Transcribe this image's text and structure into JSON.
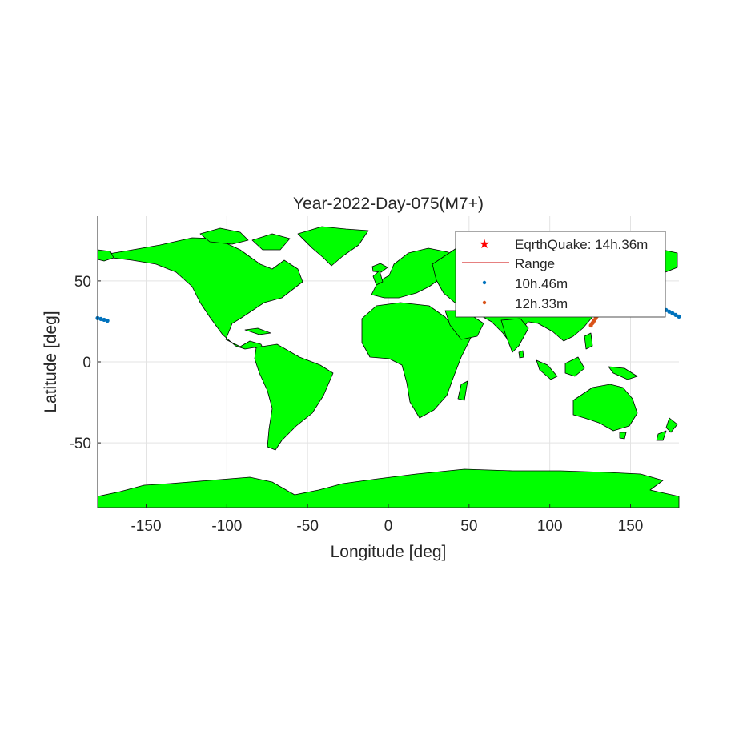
{
  "chart_data": {
    "type": "scatter",
    "title": "Year-2022-Day-075(M7+)",
    "xlabel": "Longitude [deg]",
    "ylabel": "Latitude [deg]",
    "xlim": [
      -180,
      180
    ],
    "ylim": [
      -90,
      90
    ],
    "xticks": [
      -150,
      -100,
      -50,
      0,
      50,
      100,
      150
    ],
    "yticks": [
      -50,
      0,
      50
    ],
    "grid": true,
    "legend_position": "top-right",
    "legend": [
      {
        "label": "EqrthQuake: 14h.36m",
        "marker": "star",
        "color": "#ff0000"
      },
      {
        "label": "Range",
        "marker": "line",
        "color": "#cc0000"
      },
      {
        "label": "10h.46m",
        "marker": "dot",
        "color": "#0072bd"
      },
      {
        "label": "12h.33m",
        "marker": "dot",
        "color": "#d95319"
      }
    ],
    "series": [
      {
        "name": "10h.46m",
        "color": "#0072bd",
        "x": [
          -180,
          -178,
          -176,
          -174,
          172,
          174,
          176,
          178,
          180
        ],
        "y": [
          27,
          26.5,
          26,
          25.4,
          32,
          31,
          30,
          29,
          28
        ]
      },
      {
        "name": "12h.33m",
        "color": "#d95319",
        "x": [
          125.5,
          126.5,
          127.5,
          128.5,
          129.5,
          130.5
        ],
        "y": [
          22.5,
          24,
          25.5,
          27,
          28.5,
          30
        ]
      }
    ],
    "land_color": "#00ff00"
  }
}
